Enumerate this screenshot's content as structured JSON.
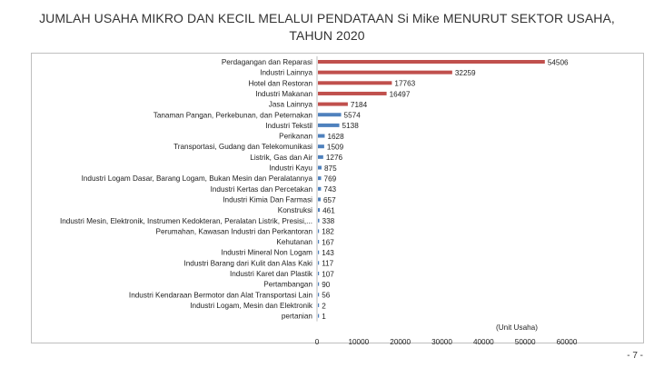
{
  "title_line1": "JUMLAH USAHA MIKRO DAN KECIL MELALUI PENDATAAN Si Mike  MENURUT SEKTOR USAHA,",
  "title_line2": "TAHUN 2020",
  "unit_note": "(Unit Usaha)",
  "page_number": "- 7 -",
  "colors": {
    "bar_top": "#c0504d",
    "bar_low": "#4f81bd"
  },
  "chart_data": {
    "type": "bar",
    "orientation": "horizontal",
    "xlim": [
      0,
      60000
    ],
    "x_ticks": [
      0,
      10000,
      20000,
      30000,
      40000,
      50000,
      60000
    ],
    "grid": false,
    "categories": [
      "Perdagangan dan Reparasi",
      "Industri Lainnya",
      "Hotel dan Restoran",
      "Industri Makanan",
      "Jasa Lainnya",
      "Tanaman Pangan, Perkebunan, dan Peternakan",
      "Industri Tekstil",
      "Perikanan",
      "Transportasi, Gudang dan Telekomunikasi",
      "Listrik, Gas dan Air",
      "Industri Kayu",
      "Industri Logam Dasar, Barang Logam, Bukan Mesin dan Peralatannya",
      "Industri Kertas dan Percetakan",
      "Industri Kimia Dan Farmasi",
      "Konstruksi",
      "Industri Mesin, Elektronik, Instrumen Kedokteran, Peralatan Listrik, Presisi,...",
      "Perumahan, Kawasan Industri dan Perkantoran",
      "Kehutanan",
      "Industri Mineral Non Logam",
      "Industri Barang dari Kulit dan Alas Kaki",
      "Industri Karet dan Plastik",
      "Pertambangan",
      "Industri Kendaraan Bermotor dan Alat Transportasi Lain",
      "Industri Logam, Mesin dan Elektronik",
      "pertanian"
    ],
    "values": [
      54506,
      32259,
      17763,
      16497,
      7184,
      5574,
      5138,
      1628,
      1509,
      1276,
      875,
      769,
      743,
      657,
      461,
      338,
      182,
      167,
      143,
      117,
      107,
      90,
      56,
      2,
      1
    ],
    "bar_colors": [
      "#c0504d",
      "#c0504d",
      "#c0504d",
      "#c0504d",
      "#c0504d",
      "#4f81bd",
      "#4f81bd",
      "#4f81bd",
      "#4f81bd",
      "#4f81bd",
      "#4f81bd",
      "#4f81bd",
      "#4f81bd",
      "#4f81bd",
      "#4f81bd",
      "#4f81bd",
      "#4f81bd",
      "#4f81bd",
      "#4f81bd",
      "#4f81bd",
      "#4f81bd",
      "#4f81bd",
      "#4f81bd",
      "#4f81bd",
      "#4f81bd"
    ]
  }
}
